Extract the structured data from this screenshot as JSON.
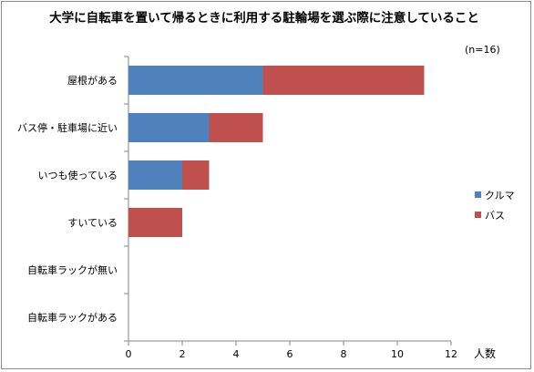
{
  "chart_data": {
    "type": "bar",
    "orientation": "horizontal",
    "stacked": true,
    "title": "大学に自転車を置いて帰るときに利用する駐輪場を選ぶ際に注意していること",
    "note": "(n=16)",
    "xlabel": "人数",
    "ylabel": "",
    "xlim": [
      0,
      12
    ],
    "ticks": [
      0,
      2,
      4,
      6,
      8,
      10,
      12
    ],
    "categories": [
      "屋根がある",
      "バス停・駐車場に近い",
      "いつも使っている",
      "すいている",
      "自転車ラックが無い",
      "自転車ラックがある"
    ],
    "series": [
      {
        "name": "クルマ",
        "color": "#4f81bd",
        "values": [
          5,
          3,
          2,
          0,
          0,
          0
        ]
      },
      {
        "name": "バス",
        "color": "#c0504d",
        "values": [
          6,
          2,
          1,
          2,
          0,
          0
        ]
      }
    ],
    "grid": false,
    "legend": "right"
  }
}
